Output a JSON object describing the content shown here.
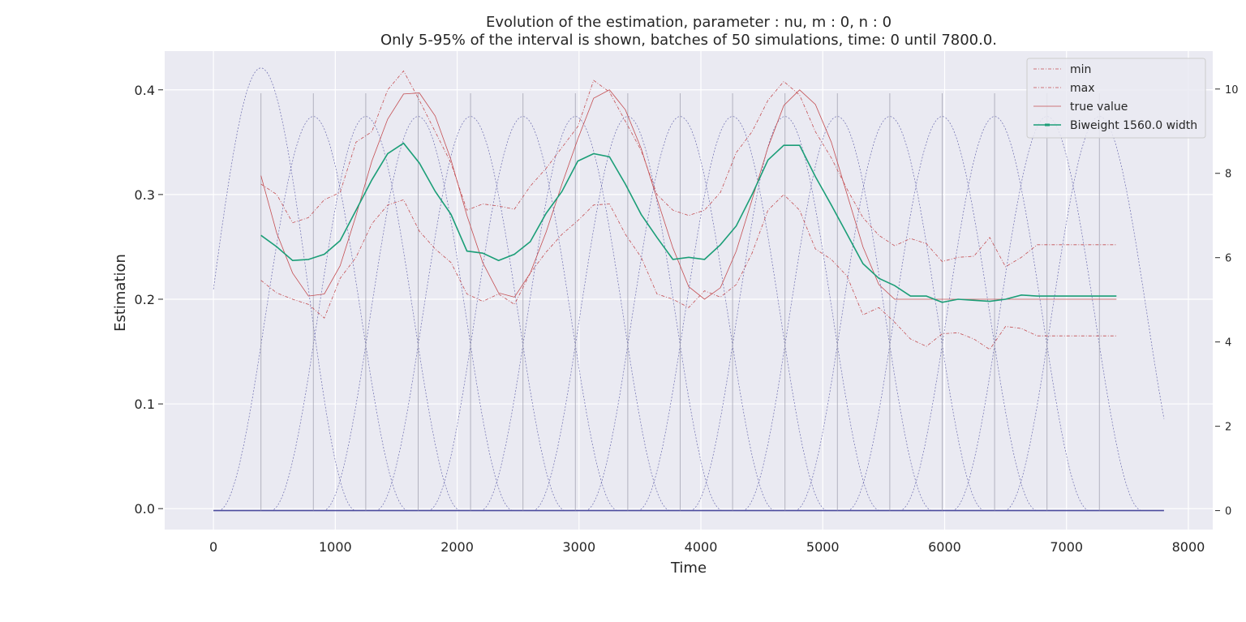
{
  "chart_data": {
    "type": "line",
    "title": "Evolution of the estimation, parameter : nu, m : 0, n : 0",
    "subtitle": "Only 5-95% of the interval is shown, batches of 50 simulations, time: 0 until 7800.0.",
    "xlabel": "Time",
    "ylabel": "Estimation",
    "xlim": [
      -400,
      8200
    ],
    "ylim": [
      -0.02,
      0.437
    ],
    "y2lim": [
      -0.45,
      10.9
    ],
    "xticks": [
      "0",
      "1000",
      "2000",
      "3000",
      "4000",
      "5000",
      "6000",
      "7000",
      "8000"
    ],
    "yticks": [
      "0.0",
      "0.1",
      "0.2",
      "0.3",
      "0.4"
    ],
    "y2ticks": [
      "0",
      "2",
      "4",
      "6",
      "8",
      "10"
    ],
    "grid": true,
    "legend_position": "top-right",
    "x": [
      390,
      520,
      650,
      780,
      910,
      1040,
      1170,
      1300,
      1430,
      1560,
      1690,
      1820,
      1950,
      2080,
      2210,
      2340,
      2470,
      2600,
      2730,
      2860,
      2990,
      3120,
      3250,
      3380,
      3510,
      3640,
      3770,
      3900,
      4030,
      4160,
      4290,
      4420,
      4550,
      4680,
      4810,
      4940,
      5070,
      5200,
      5330,
      5460,
      5590,
      5720,
      5850,
      5980,
      6110,
      6240,
      6370,
      6500,
      6630,
      6760,
      6890,
      7020,
      7150,
      7280,
      7410
    ],
    "series": [
      {
        "name": "min",
        "color": "#c44e52",
        "style": "dashdot",
        "values": [
          0.218,
          0.206,
          0.2,
          0.195,
          0.182,
          0.22,
          0.24,
          0.272,
          0.29,
          0.295,
          0.265,
          0.248,
          0.235,
          0.205,
          0.198,
          0.205,
          0.195,
          0.225,
          0.245,
          0.262,
          0.275,
          0.29,
          0.291,
          0.262,
          0.24,
          0.205,
          0.2,
          0.192,
          0.208,
          0.202,
          0.214,
          0.244,
          0.285,
          0.3,
          0.285,
          0.248,
          0.238,
          0.222,
          0.185,
          0.192,
          0.178,
          0.162,
          0.155,
          0.167,
          0.168,
          0.162,
          0.152,
          0.174,
          0.172,
          0.165,
          0.165,
          0.165,
          0.165,
          0.165,
          0.165
        ]
      },
      {
        "name": "max",
        "color": "#c44e52",
        "style": "dashdot",
        "values": [
          0.31,
          0.3,
          0.273,
          0.278,
          0.295,
          0.302,
          0.35,
          0.36,
          0.4,
          0.418,
          0.39,
          0.36,
          0.33,
          0.285,
          0.291,
          0.289,
          0.286,
          0.308,
          0.325,
          0.345,
          0.365,
          0.409,
          0.398,
          0.37,
          0.342,
          0.3,
          0.285,
          0.28,
          0.285,
          0.302,
          0.34,
          0.36,
          0.39,
          0.408,
          0.395,
          0.36,
          0.335,
          0.305,
          0.278,
          0.261,
          0.251,
          0.258,
          0.253,
          0.236,
          0.24,
          0.241,
          0.259,
          0.231,
          0.24,
          0.252,
          0.252,
          0.252,
          0.252,
          0.252,
          0.252
        ]
      },
      {
        "name": "true value",
        "color": "#c44e52",
        "style": "solid",
        "values": [
          0.318,
          0.263,
          0.225,
          0.203,
          0.205,
          0.232,
          0.28,
          0.332,
          0.372,
          0.396,
          0.397,
          0.375,
          0.333,
          0.28,
          0.235,
          0.206,
          0.202,
          0.225,
          0.264,
          0.31,
          0.353,
          0.392,
          0.4,
          0.381,
          0.344,
          0.296,
          0.249,
          0.212,
          0.2,
          0.211,
          0.246,
          0.295,
          0.345,
          0.385,
          0.4,
          0.386,
          0.35,
          0.3,
          0.25,
          0.214,
          0.2,
          0.2,
          0.2,
          0.2,
          0.2,
          0.2,
          0.2,
          0.2,
          0.2,
          0.2,
          0.2,
          0.2,
          0.2,
          0.2,
          0.2
        ]
      },
      {
        "name": "Biweight 1560.0 width",
        "color": "#1b9e77",
        "style": "solid",
        "values": [
          0.261,
          0.25,
          0.237,
          0.238,
          0.243,
          0.256,
          0.285,
          0.314,
          0.339,
          0.349,
          0.33,
          0.303,
          0.281,
          0.246,
          0.244,
          0.237,
          0.243,
          0.255,
          0.282,
          0.303,
          0.332,
          0.339,
          0.336,
          0.31,
          0.281,
          0.259,
          0.238,
          0.24,
          0.238,
          0.252,
          0.27,
          0.3,
          0.333,
          0.347,
          0.347,
          0.317,
          0.29,
          0.262,
          0.234,
          0.22,
          0.213,
          0.203,
          0.203,
          0.197,
          0.2,
          0.199,
          0.198,
          0.2,
          0.204,
          0.203,
          0.203,
          0.203,
          0.203,
          0.203,
          0.203
        ]
      }
    ],
    "kernels": {
      "axis": "secondary",
      "color": "#4c4c9e",
      "first": {
        "center": 390,
        "halfwidth": 780,
        "peak": 10.5
      },
      "centers": [
        820,
        1250,
        1680,
        2110,
        2540,
        2970,
        3400,
        3830,
        4260,
        4690,
        5120,
        5550,
        5980,
        6410,
        6840,
        7270
      ],
      "halfwidth": 780,
      "peak": 9.35,
      "x_end": 7800
    },
    "vertical_lines": [
      390,
      820,
      1250,
      1680,
      2110,
      2540,
      2970,
      3400,
      3830,
      4260,
      4690,
      5120,
      5550,
      5980,
      6410,
      6840,
      7270
    ]
  }
}
